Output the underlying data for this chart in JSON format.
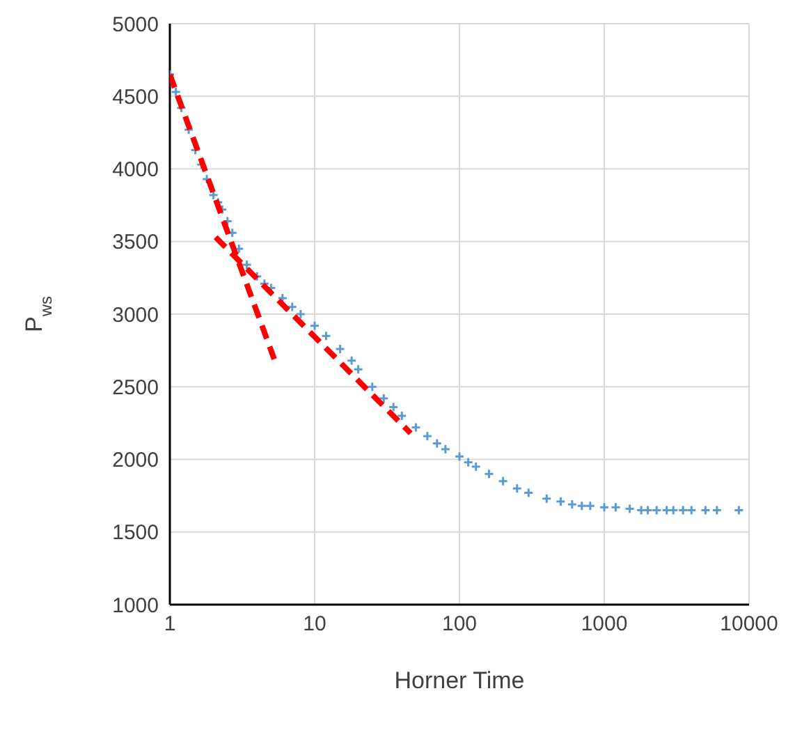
{
  "chart_data": {
    "type": "scatter",
    "xlabel": "Horner Time",
    "ylabel": "P$_{ws}$",
    "log": "x",
    "xlim": [
      1,
      10000
    ],
    "xticks": [
      1,
      10,
      100,
      1000,
      10000
    ],
    "ylim": [
      1000,
      5000
    ],
    "yticks": [
      1000,
      1500,
      2000,
      2500,
      3000,
      3500,
      4000,
      4500,
      5000
    ],
    "grid": true,
    "series": [
      {
        "color": "#5b9bd5",
        "marker": "cross",
        "x": [
          1,
          1.1,
          1.2,
          1.35,
          1.5,
          1.65,
          1.8,
          2,
          2.15,
          2.3,
          2.5,
          2.7,
          3,
          3.4,
          4,
          4.5,
          5,
          6,
          7,
          8,
          10,
          12,
          15,
          18,
          20,
          25,
          30,
          35,
          40,
          50,
          60,
          70,
          80,
          100,
          115,
          130,
          160,
          200,
          250,
          300,
          400,
          500,
          600,
          700,
          800,
          1000,
          1200,
          1500,
          1800,
          2000,
          2300,
          2700,
          3000,
          3500,
          4000,
          5000,
          6000,
          8500
        ],
        "values": [
          4650,
          4530,
          4420,
          4270,
          4130,
          4030,
          3930,
          3820,
          3770,
          3720,
          3640,
          3560,
          3450,
          3340,
          3260,
          3210,
          3180,
          3110,
          3050,
          3000,
          2920,
          2850,
          2760,
          2680,
          2620,
          2500,
          2420,
          2360,
          2300,
          2220,
          2160,
          2110,
          2070,
          2020,
          1980,
          1950,
          1900,
          1850,
          1800,
          1770,
          1730,
          1710,
          1690,
          1680,
          1680,
          1670,
          1670,
          1660,
          1650,
          1650,
          1650,
          1650,
          1650,
          1650,
          1650,
          1650,
          1650,
          1650
        ]
      },
      {
        "type": "line",
        "color": "#ff0000",
        "line_style": "dashed",
        "marker": "none",
        "x": [
          1,
          5.26
        ],
        "values": [
          4650,
          2690
        ]
      },
      {
        "type": "line",
        "color": "#ff0000",
        "line_style": "dashed",
        "marker": "none",
        "x": [
          2.07,
          46
        ],
        "values": [
          3530,
          2180
        ]
      }
    ]
  }
}
